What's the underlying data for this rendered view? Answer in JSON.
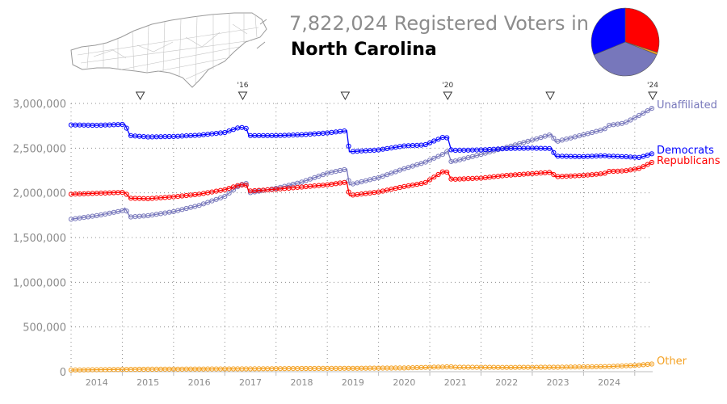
{
  "header": {
    "count_title": "7,822,024 Registered Voters in",
    "state_title": "North Carolina"
  },
  "map_icon": "north-carolina-county-map",
  "pie": {
    "slices": [
      {
        "name": "Unaffiliated",
        "value": 2950000,
        "color": "#7777bb"
      },
      {
        "name": "Democrats",
        "value": 2440000,
        "color": "#0000ff"
      },
      {
        "name": "Republicans",
        "value": 2345000,
        "color": "#ff0000"
      },
      {
        "name": "Other",
        "value": 87024,
        "color": "#f4a020"
      }
    ]
  },
  "election_markers": {
    "icon": "down-triangle-marker",
    "years": [
      2014,
      2016,
      2018,
      2020,
      2022,
      2024
    ],
    "labels": [
      "",
      "'16",
      "",
      "'20",
      "",
      "'24"
    ]
  },
  "chart_data": {
    "type": "line",
    "title": "",
    "xlabel": "",
    "ylabel": "",
    "ylim": [
      0,
      3000000
    ],
    "xlim": [
      2013.5,
      2024.85
    ],
    "y_ticks": [
      0,
      500000,
      1000000,
      1500000,
      2000000,
      2500000,
      3000000
    ],
    "y_tick_labels": [
      "0",
      "500,000",
      "1,000,000",
      "1,500,000",
      "2,000,000",
      "2,500,000",
      "3,000,000"
    ],
    "x_tick_labels": [
      "2014",
      "2015",
      "2016",
      "2017",
      "2018",
      "2019",
      "2020",
      "2021",
      "2022",
      "2023",
      "2024"
    ],
    "grid": true,
    "legend": "right-end labels",
    "series": [
      {
        "name": "Unaffiliated",
        "color": "#7777bb",
        "points": [
          [
            2013.5,
            1705000
          ],
          [
            2014.0,
            1745000
          ],
          [
            2014.5,
            1800000
          ],
          [
            2014.55,
            1830000
          ],
          [
            2014.65,
            1730000
          ],
          [
            2015.0,
            1745000
          ],
          [
            2015.5,
            1790000
          ],
          [
            2016.0,
            1860000
          ],
          [
            2016.5,
            1960000
          ],
          [
            2016.8,
            2090000
          ],
          [
            2016.92,
            2105000
          ],
          [
            2016.97,
            2000000
          ],
          [
            2017.5,
            2050000
          ],
          [
            2018.0,
            2120000
          ],
          [
            2018.5,
            2220000
          ],
          [
            2018.88,
            2265000
          ],
          [
            2018.93,
            2090000
          ],
          [
            2019.5,
            2170000
          ],
          [
            2020.0,
            2270000
          ],
          [
            2020.4,
            2340000
          ],
          [
            2020.75,
            2430000
          ],
          [
            2020.85,
            2465000
          ],
          [
            2020.92,
            2345000
          ],
          [
            2021.5,
            2430000
          ],
          [
            2022.0,
            2510000
          ],
          [
            2022.5,
            2590000
          ],
          [
            2022.88,
            2655000
          ],
          [
            2022.95,
            2570000
          ],
          [
            2023.5,
            2650000
          ],
          [
            2023.9,
            2710000
          ],
          [
            2024.0,
            2755000
          ],
          [
            2024.3,
            2780000
          ],
          [
            2024.6,
            2870000
          ],
          [
            2024.85,
            2950000
          ]
        ]
      },
      {
        "name": "Democrats",
        "color": "#0000ff",
        "points": [
          [
            2013.5,
            2760000
          ],
          [
            2014.0,
            2755000
          ],
          [
            2014.5,
            2765000
          ],
          [
            2014.55,
            2765000
          ],
          [
            2014.65,
            2640000
          ],
          [
            2015.0,
            2625000
          ],
          [
            2015.5,
            2630000
          ],
          [
            2016.0,
            2645000
          ],
          [
            2016.5,
            2675000
          ],
          [
            2016.8,
            2735000
          ],
          [
            2016.92,
            2720000
          ],
          [
            2016.97,
            2640000
          ],
          [
            2017.5,
            2640000
          ],
          [
            2018.0,
            2650000
          ],
          [
            2018.5,
            2670000
          ],
          [
            2018.88,
            2695000
          ],
          [
            2018.93,
            2460000
          ],
          [
            2019.5,
            2480000
          ],
          [
            2020.0,
            2525000
          ],
          [
            2020.4,
            2535000
          ],
          [
            2020.75,
            2620000
          ],
          [
            2020.85,
            2615000
          ],
          [
            2020.92,
            2475000
          ],
          [
            2021.5,
            2480000
          ],
          [
            2022.0,
            2495000
          ],
          [
            2022.5,
            2500000
          ],
          [
            2022.88,
            2495000
          ],
          [
            2022.95,
            2410000
          ],
          [
            2023.5,
            2405000
          ],
          [
            2023.9,
            2415000
          ],
          [
            2024.0,
            2410000
          ],
          [
            2024.3,
            2405000
          ],
          [
            2024.6,
            2395000
          ],
          [
            2024.85,
            2440000
          ]
        ]
      },
      {
        "name": "Republicans",
        "color": "#ff0000",
        "points": [
          [
            2013.5,
            1985000
          ],
          [
            2014.0,
            1995000
          ],
          [
            2014.5,
            2005000
          ],
          [
            2014.55,
            2005000
          ],
          [
            2014.65,
            1940000
          ],
          [
            2015.0,
            1935000
          ],
          [
            2015.5,
            1955000
          ],
          [
            2016.0,
            1985000
          ],
          [
            2016.5,
            2035000
          ],
          [
            2016.8,
            2090000
          ],
          [
            2016.92,
            2085000
          ],
          [
            2016.97,
            2020000
          ],
          [
            2017.5,
            2040000
          ],
          [
            2018.0,
            2065000
          ],
          [
            2018.5,
            2090000
          ],
          [
            2018.88,
            2120000
          ],
          [
            2018.93,
            1970000
          ],
          [
            2019.5,
            2010000
          ],
          [
            2020.0,
            2070000
          ],
          [
            2020.4,
            2110000
          ],
          [
            2020.75,
            2235000
          ],
          [
            2020.85,
            2230000
          ],
          [
            2020.92,
            2150000
          ],
          [
            2021.5,
            2165000
          ],
          [
            2022.0,
            2195000
          ],
          [
            2022.5,
            2215000
          ],
          [
            2022.88,
            2230000
          ],
          [
            2022.95,
            2180000
          ],
          [
            2023.5,
            2195000
          ],
          [
            2023.9,
            2215000
          ],
          [
            2024.0,
            2240000
          ],
          [
            2024.3,
            2245000
          ],
          [
            2024.6,
            2275000
          ],
          [
            2024.85,
            2345000
          ]
        ]
      },
      {
        "name": "Other",
        "color": "#f4a020",
        "points": [
          [
            2013.5,
            18000
          ],
          [
            2014.0,
            22000
          ],
          [
            2015.0,
            28000
          ],
          [
            2016.0,
            30000
          ],
          [
            2017.0,
            32000
          ],
          [
            2018.0,
            36000
          ],
          [
            2019.0,
            38000
          ],
          [
            2020.0,
            42000
          ],
          [
            2020.9,
            55000
          ],
          [
            2021.0,
            50000
          ],
          [
            2022.0,
            48000
          ],
          [
            2023.0,
            50000
          ],
          [
            2024.0,
            58000
          ],
          [
            2024.5,
            70000
          ],
          [
            2024.85,
            87024
          ]
        ]
      }
    ]
  }
}
